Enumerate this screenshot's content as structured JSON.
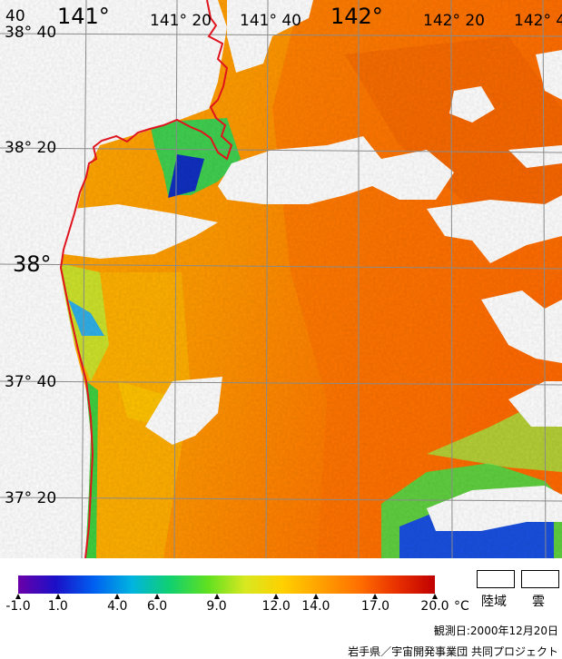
{
  "map": {
    "lon_labels": [
      {
        "text": "141°",
        "size": "big"
      },
      {
        "text": "141° 20",
        "size": "small"
      },
      {
        "text": "141° 40",
        "size": "small"
      },
      {
        "text": "142°",
        "size": "big"
      },
      {
        "text": "142° 20",
        "size": "small"
      },
      {
        "text": "142° 4",
        "size": "small"
      }
    ],
    "corner_label": "40",
    "lat_labels": [
      {
        "text": "38° 40",
        "size": "small"
      },
      {
        "text": "38° 20",
        "size": "small"
      },
      {
        "text": "38°",
        "size": "big"
      },
      {
        "text": "37° 40",
        "size": "small"
      },
      {
        "text": "37° 20",
        "size": "small"
      }
    ],
    "colors": {
      "coastline": "#e0141e",
      "grid": "#8a8a8a",
      "land_cloud": "#ffffff"
    }
  },
  "colorbar": {
    "min": -1.0,
    "max": 20.0,
    "unit": "°C",
    "ticks": [
      "-1.0",
      "1.0",
      "4.0",
      "6.0",
      "9.0",
      "12.0",
      "14.0",
      "17.0",
      "20.0"
    ],
    "tick_values": [
      -1.0,
      1.0,
      4.0,
      6.0,
      9.0,
      12.0,
      14.0,
      17.0,
      20.0
    ],
    "stops": [
      "#6a00a8",
      "#1a10c8",
      "#0060f0",
      "#00b4e0",
      "#10d070",
      "#60e020",
      "#d8e820",
      "#ffd000",
      "#ffa000",
      "#ff7000",
      "#e83000",
      "#c00000"
    ]
  },
  "legend": {
    "land_label": "陸域",
    "cloud_label": "雲"
  },
  "footer": {
    "observation_date": "観測日:2000年12月20日",
    "credit": "岩手県／宇宙開発事業団 共同プロジェクト"
  }
}
